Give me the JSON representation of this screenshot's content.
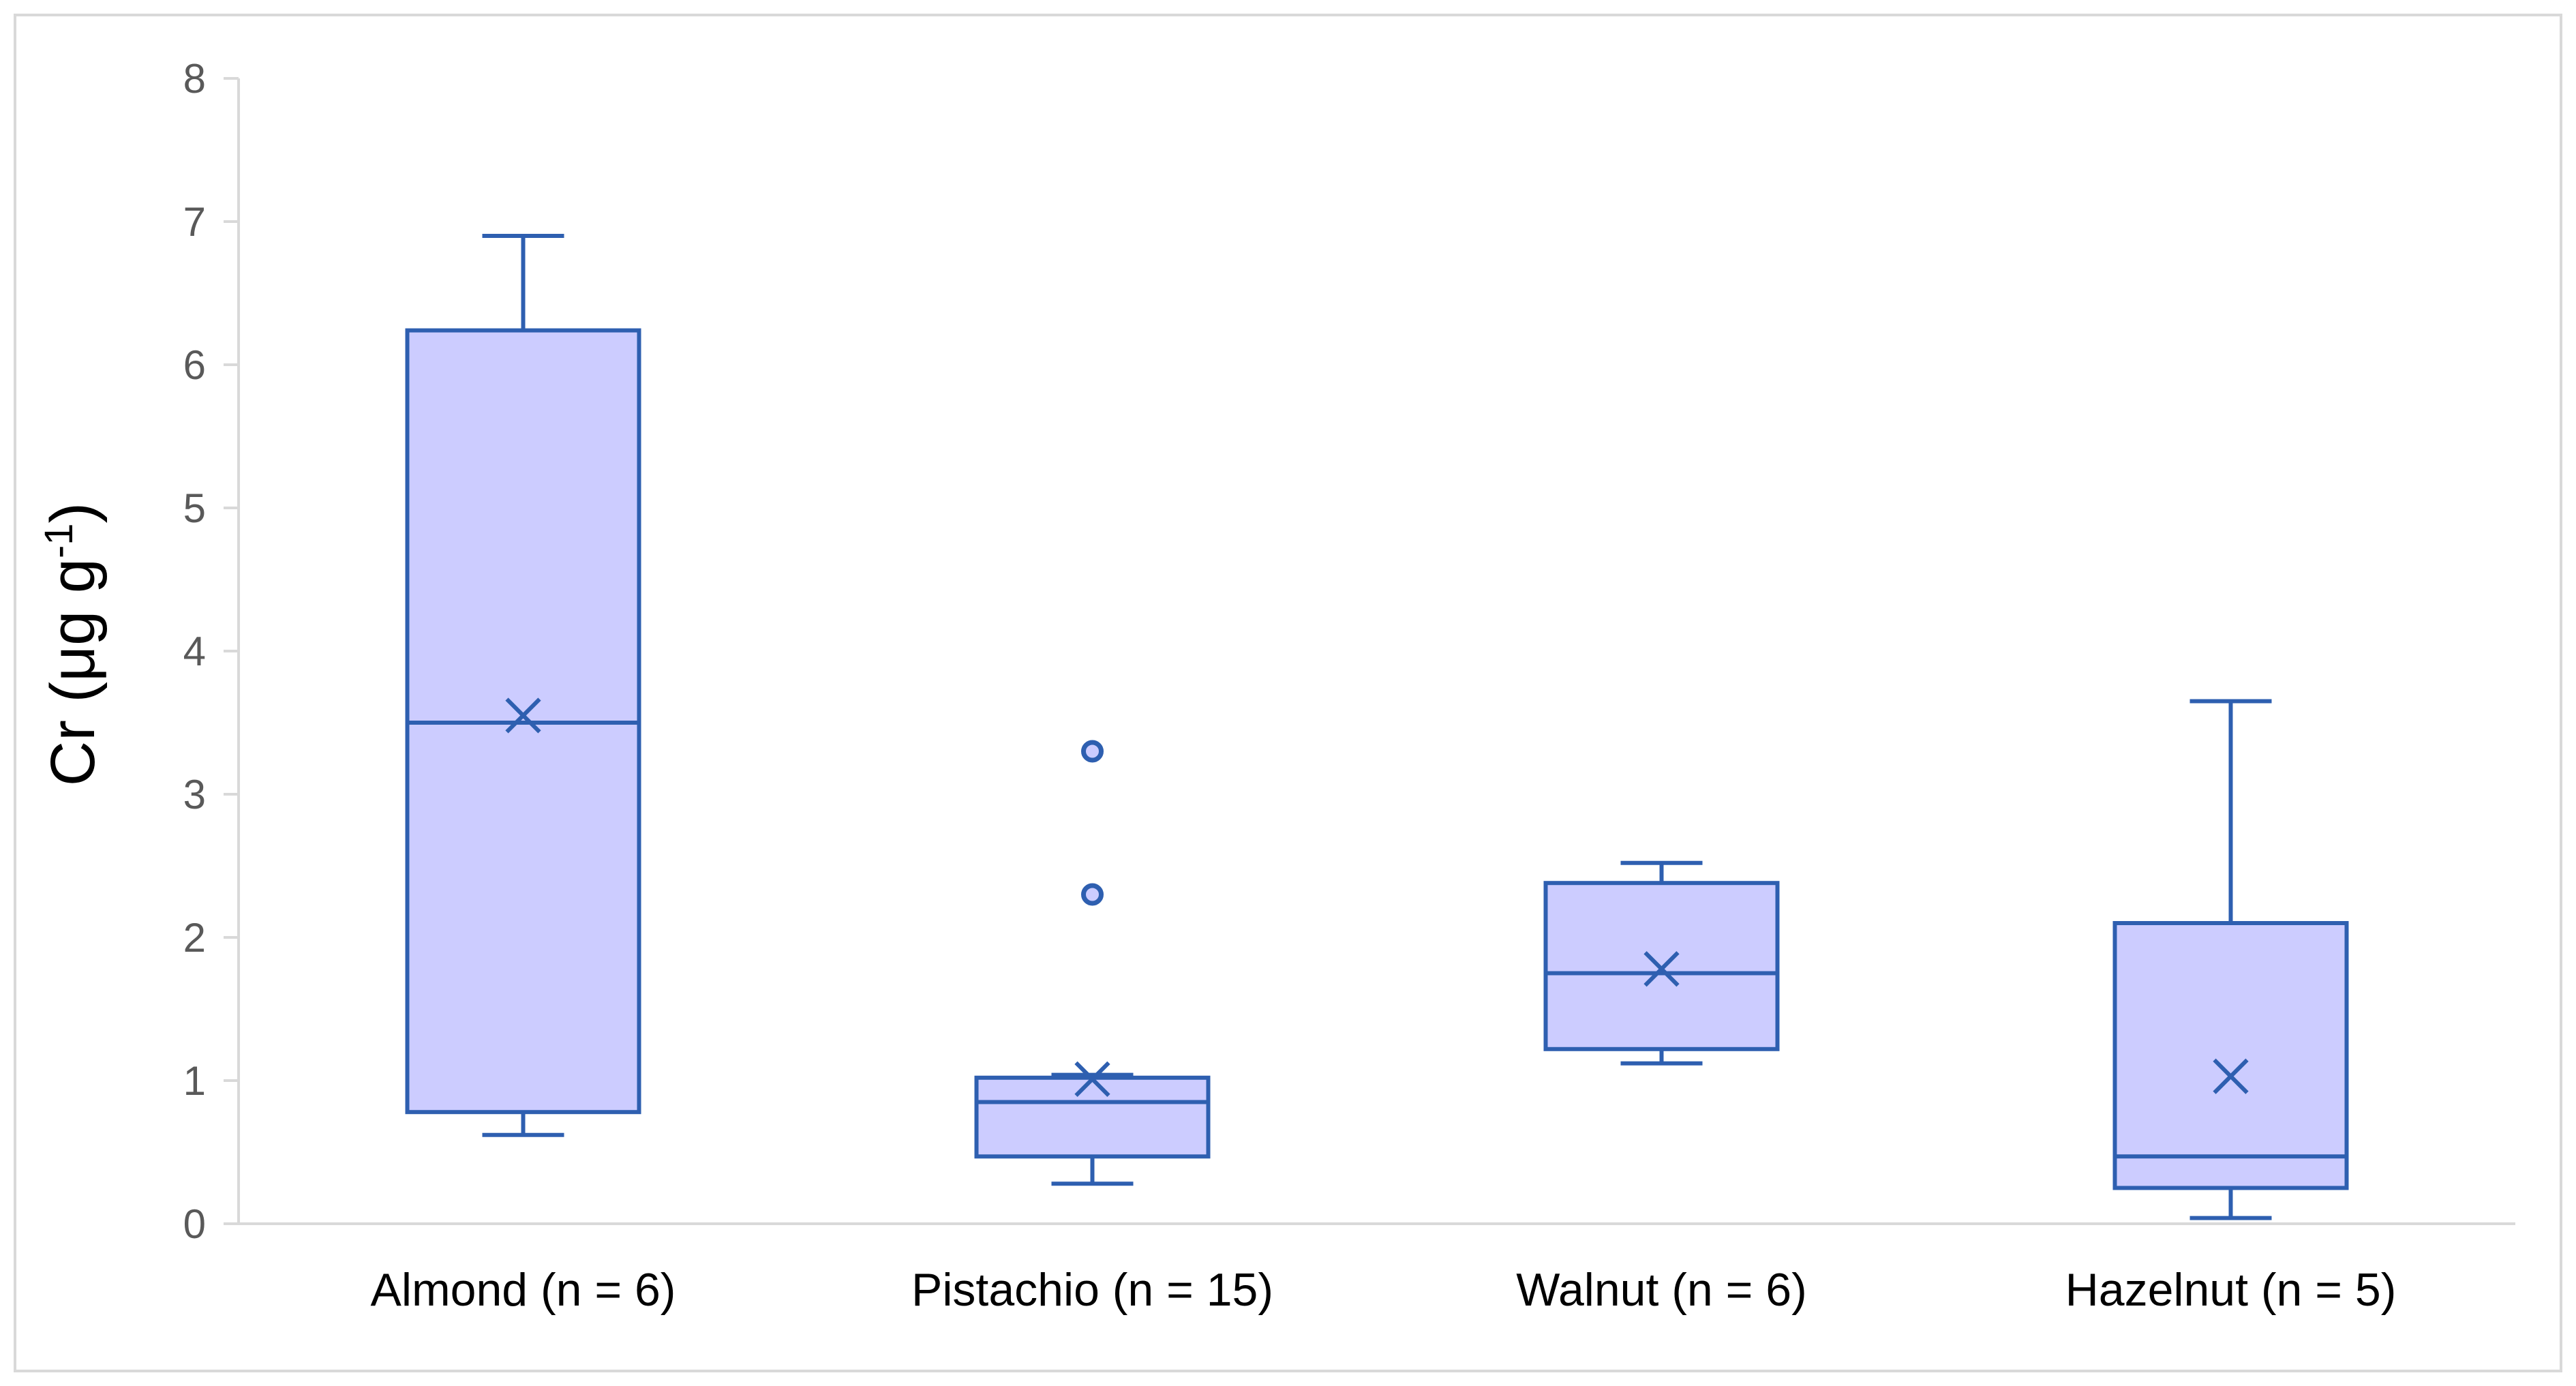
{
  "chart_data": {
    "type": "box",
    "title": "",
    "ylabel_parts": {
      "main": "Cr (μg g",
      "superscript": "-1",
      "close": ")"
    },
    "ylim": [
      0,
      8
    ],
    "yticks": [
      "0",
      "1",
      "2",
      "3",
      "4",
      "5",
      "6",
      "7",
      "8"
    ],
    "grid": false,
    "legend": "none",
    "colors": {
      "box_fill": "#ccccff",
      "box_stroke": "#2e5fb0",
      "axis": "#d9d9d9"
    },
    "categories": [
      {
        "label": "Almond (n = 6)",
        "whisker_low": 0.62,
        "q1": 0.78,
        "median": 3.5,
        "q3": 6.24,
        "whisker_high": 6.9,
        "mean": 3.55,
        "outliers": []
      },
      {
        "label": "Pistachio (n = 15)",
        "whisker_low": 0.28,
        "q1": 0.47,
        "median": 0.85,
        "q3": 1.02,
        "whisker_high": 1.04,
        "mean": 1.01,
        "outliers": [
          2.3,
          3.3
        ]
      },
      {
        "label": "Walnut (n = 6)",
        "whisker_low": 1.12,
        "q1": 1.22,
        "median": 1.75,
        "q3": 2.38,
        "whisker_high": 2.52,
        "mean": 1.78,
        "outliers": []
      },
      {
        "label": "Hazelnut (n = 5)",
        "whisker_low": 0.04,
        "q1": 0.25,
        "median": 0.47,
        "q3": 2.1,
        "whisker_high": 3.65,
        "mean": 1.03,
        "outliers": []
      }
    ]
  }
}
